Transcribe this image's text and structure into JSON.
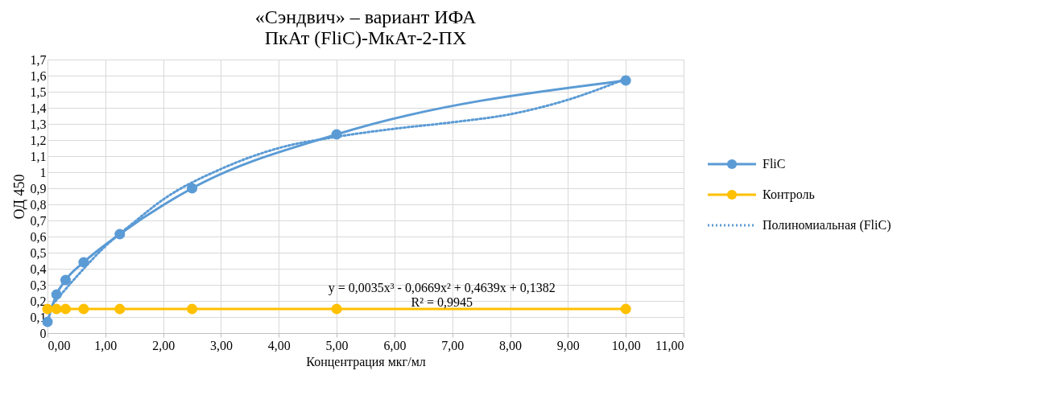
{
  "chart_data": {
    "type": "line",
    "title": "«Сэндвич» – вариант ИФА\nПкАт (FliC)-МкАт-2-ПХ",
    "xlabel": "Концентрация мкг/мл",
    "ylabel": "ОД 450",
    "x": [
      0,
      0.156,
      0.3125,
      0.625,
      1.25,
      2.5,
      5,
      10
    ],
    "series": [
      {
        "name": "FliC",
        "color": "#5b9bd5",
        "values": [
          0.07,
          0.24,
          0.33,
          0.44,
          0.615,
          0.9,
          1.235,
          1.57
        ],
        "marker": "circle",
        "line_style": "solid"
      },
      {
        "name": "Контроль",
        "color": "#ffc000",
        "values": [
          0.15,
          0.15,
          0.15,
          0.15,
          0.15,
          0.15,
          0.15,
          0.15
        ],
        "marker": "circle",
        "line_style": "solid"
      },
      {
        "name": "Полиномиальная (FliC)",
        "color": "#5b9bd5",
        "type": "line",
        "x": [
          0,
          0.5,
          1,
          1.5,
          2,
          3,
          4,
          5,
          6,
          7,
          8,
          9,
          10
        ],
        "values": [
          0.14,
          0.35,
          0.54,
          0.69,
          0.83,
          1.02,
          1.15,
          1.22,
          1.27,
          1.31,
          1.36,
          1.45,
          1.58
        ],
        "marker": "none",
        "line_style": "dotted"
      }
    ],
    "annotations": [
      "y = 0,0035x³ - 0,0669x² + 0,4639x + 0,1382\nR² = 0,9945"
    ],
    "xlim": [
      0,
      11
    ],
    "ylim": [
      0,
      1.7
    ],
    "xticks": [
      {
        "value": 0,
        "label": "0,00"
      },
      {
        "value": 1,
        "label": "1,00"
      },
      {
        "value": 2,
        "label": "2,00"
      },
      {
        "value": 3,
        "label": "3,00"
      },
      {
        "value": 4,
        "label": "4,00"
      },
      {
        "value": 5,
        "label": "5,00"
      },
      {
        "value": 6,
        "label": "6,00"
      },
      {
        "value": 7,
        "label": "7,00"
      },
      {
        "value": 8,
        "label": "8,00"
      },
      {
        "value": 9,
        "label": "9,00"
      },
      {
        "value": 10,
        "label": "10,00"
      },
      {
        "value": 11,
        "label": "11,00"
      }
    ],
    "yticks": [
      0,
      {
        "value": 0.1,
        "label": "0,1"
      },
      {
        "value": 0.2,
        "label": "0,2"
      },
      {
        "value": 0.3,
        "label": "0,3"
      },
      {
        "value": 0.4,
        "label": "0,4"
      },
      {
        "value": 0.5,
        "label": "0,5"
      },
      {
        "value": 0.6,
        "label": "0,6"
      },
      {
        "value": 0.7,
        "label": "0,7"
      },
      {
        "value": 0.8,
        "label": "0,8"
      },
      {
        "value": 0.9,
        "label": "0,9"
      },
      1,
      {
        "value": 1.1,
        "label": "1,1"
      },
      {
        "value": 1.2,
        "label": "1,2"
      },
      {
        "value": 1.3,
        "label": "1,3"
      },
      {
        "value": 1.4,
        "label": "1,4"
      },
      {
        "value": 1.5,
        "label": "1,5"
      },
      {
        "value": 1.6,
        "label": "1,6"
      },
      {
        "value": 1.7,
        "label": "1,7"
      }
    ],
    "grid": true,
    "legend": "right"
  }
}
